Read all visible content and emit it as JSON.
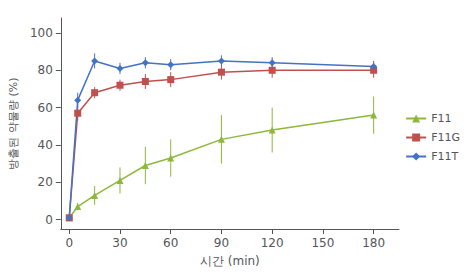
{
  "chart_data": {
    "type": "line",
    "xlabel": "시간 (min)",
    "ylabel": "방출된 약물량 (%)",
    "x": [
      0,
      5,
      15,
      30,
      45,
      60,
      90,
      120,
      180
    ],
    "series": [
      {
        "name": "F11",
        "color": "#8db83c",
        "marker": "triangle",
        "values": [
          1,
          7,
          13,
          21,
          29,
          33,
          43,
          48,
          56
        ],
        "errors": [
          0,
          2,
          5,
          7,
          10,
          10,
          13,
          12,
          10
        ]
      },
      {
        "name": "F11G",
        "color": "#c0504d",
        "marker": "square",
        "values": [
          1,
          57,
          68,
          72,
          74,
          75,
          79,
          80,
          80
        ],
        "errors": [
          0,
          4,
          3,
          3,
          4,
          4,
          4,
          4,
          4
        ]
      },
      {
        "name": "F11T",
        "color": "#4472c4",
        "marker": "diamond",
        "values": [
          1,
          64,
          85,
          81,
          84,
          83,
          85,
          84,
          82
        ],
        "errors": [
          0,
          4,
          4,
          3,
          3,
          3,
          3,
          3,
          3
        ]
      }
    ],
    "xlim": [
      -5,
      195
    ],
    "ylim": [
      -5,
      108
    ],
    "xticks": [
      0,
      30,
      60,
      90,
      120,
      150,
      180
    ],
    "yticks": [
      0,
      20,
      40,
      60,
      80,
      100
    ],
    "grid": false,
    "legend": "right"
  }
}
